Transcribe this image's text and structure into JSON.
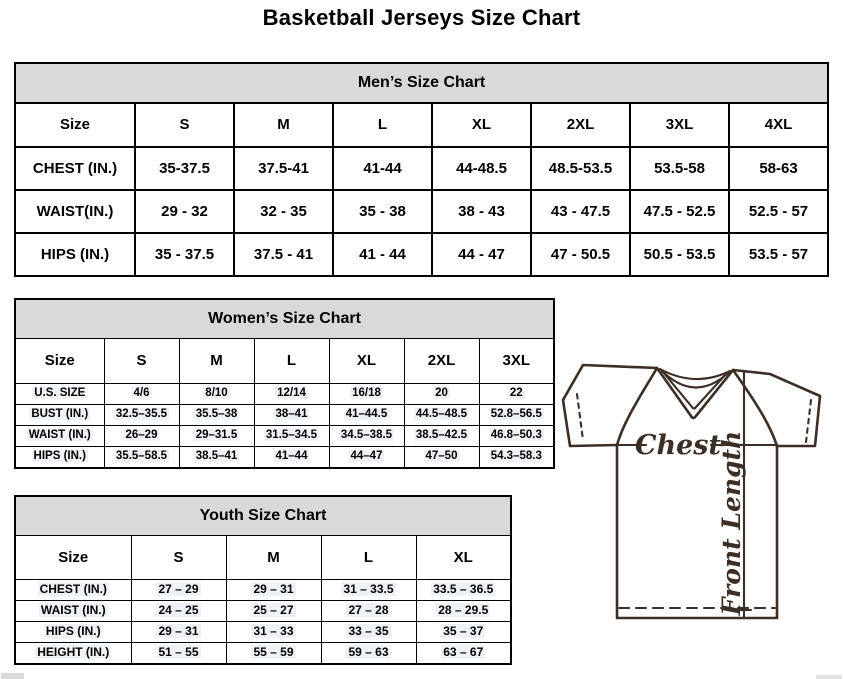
{
  "page_title": "Basketball Jerseys Size Chart",
  "colors": {
    "table_header_bg": "#d9d9d9",
    "table_border": "#000000",
    "jersey_outline": "#3a2e26",
    "selection_highlight": "#eef1f5"
  },
  "tables": {
    "mens": {
      "title": "Men’s Size Chart",
      "columns": [
        "Size",
        "S",
        "M",
        "L",
        "XL",
        "2XL",
        "3XL",
        "4XL"
      ],
      "rows": [
        {
          "label": "CHEST (IN.)",
          "values": [
            "35-37.5",
            "37.5-41",
            "41-44",
            "44-48.5",
            "48.5-53.5",
            "53.5-58",
            "58-63"
          ]
        },
        {
          "label": "WAIST(IN.)",
          "values": [
            "29 - 32",
            "32 - 35",
            "35 - 38",
            "38 - 43",
            "43 - 47.5",
            "47.5 - 52.5",
            "52.5 - 57"
          ]
        },
        {
          "label": "HIPS (IN.)",
          "values": [
            "35 - 37.5",
            "37.5 - 41",
            "41 - 44",
            "44 - 47",
            "47 - 50.5",
            "50.5 - 53.5",
            "53.5 - 57"
          ]
        }
      ]
    },
    "womens": {
      "title": "Women’s Size Chart",
      "columns": [
        "Size",
        "S",
        "M",
        "L",
        "XL",
        "2XL",
        "3XL"
      ],
      "rows": [
        {
          "label": "U.S. SIZE",
          "values": [
            "4/6",
            "8/10",
            "12/14",
            "16/18",
            "20",
            "22"
          ]
        },
        {
          "label": "BUST (IN.)",
          "values": [
            "32.5–35.5",
            "35.5–38",
            "38–41",
            "41–44.5",
            "44.5–48.5",
            "52.8–56.5"
          ]
        },
        {
          "label": "WAIST (IN.)",
          "values": [
            "26–29",
            "29–31.5",
            "31.5–34.5",
            "34.5–38.5",
            "38.5–42.5",
            "46.8–50.3"
          ]
        },
        {
          "label": "HIPS (IN.)",
          "values": [
            "35.5–58.5",
            "38.5–41",
            "41–44",
            "44–47",
            "47–50",
            "54.3–58.3"
          ]
        }
      ]
    },
    "youth": {
      "title": "Youth Size Chart",
      "columns": [
        "Size",
        "S",
        "M",
        "L",
        "XL"
      ],
      "rows": [
        {
          "label": "CHEST (IN.)",
          "values": [
            "27 – 29",
            "29 – 31",
            "31 – 33.5",
            "33.5 – 36.5"
          ]
        },
        {
          "label": "WAIST (IN.)",
          "values": [
            "24 – 25",
            "25 – 27",
            "27 – 28",
            "28 – 29.5"
          ]
        },
        {
          "label": "HIPS (IN.)",
          "values": [
            "29 – 31",
            "31 – 33",
            "33 – 35",
            "35 – 37"
          ]
        },
        {
          "label": "HEIGHT (IN.)",
          "values": [
            "51 – 55",
            "55 – 59",
            "59 – 63",
            "63 – 67"
          ]
        }
      ]
    }
  },
  "diagram": {
    "chest_label": "Chest",
    "front_length_label": "Front Length"
  }
}
